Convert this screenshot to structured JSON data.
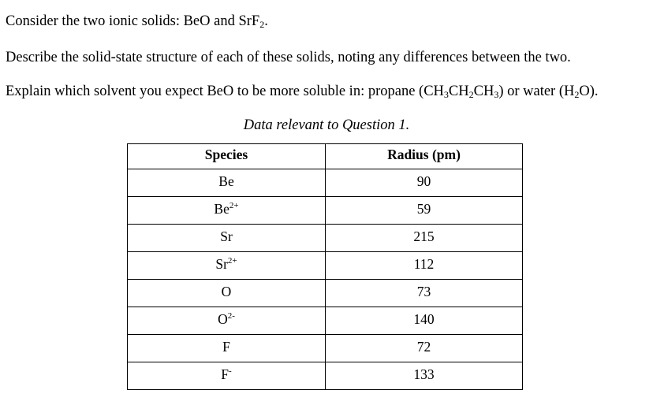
{
  "question": {
    "line1": {
      "a": "Consider the two ionic solids: BeO and SrF",
      "b": "2",
      "c": "."
    },
    "line2": "Describe the solid-state structure of each of these solids, noting any differences between the two.",
    "line3": {
      "a": "Explain which solvent you expect BeO to be more soluble in: propane (CH",
      "b": "3",
      "c": "CH",
      "d": "2",
      "e": "CH",
      "f": "3",
      "g": ") or water (H",
      "h": "2",
      "i": "O)."
    }
  },
  "caption": "Data relevant to Question 1.",
  "table": {
    "headers": [
      "Species",
      "Radius (pm)"
    ],
    "rows": [
      {
        "species": "Be",
        "charge": "",
        "radius": "90"
      },
      {
        "species": "Be",
        "charge": "2+",
        "radius": "59"
      },
      {
        "species": "Sr",
        "charge": "",
        "radius": "215"
      },
      {
        "species": "Sr",
        "charge": "2+",
        "radius": "112"
      },
      {
        "species": "O",
        "charge": "",
        "radius": "73"
      },
      {
        "species": "O",
        "charge": "2-",
        "radius": "140"
      },
      {
        "species": "F",
        "charge": "",
        "radius": "72"
      },
      {
        "species": "F",
        "charge": "-",
        "radius": "133"
      }
    ]
  }
}
